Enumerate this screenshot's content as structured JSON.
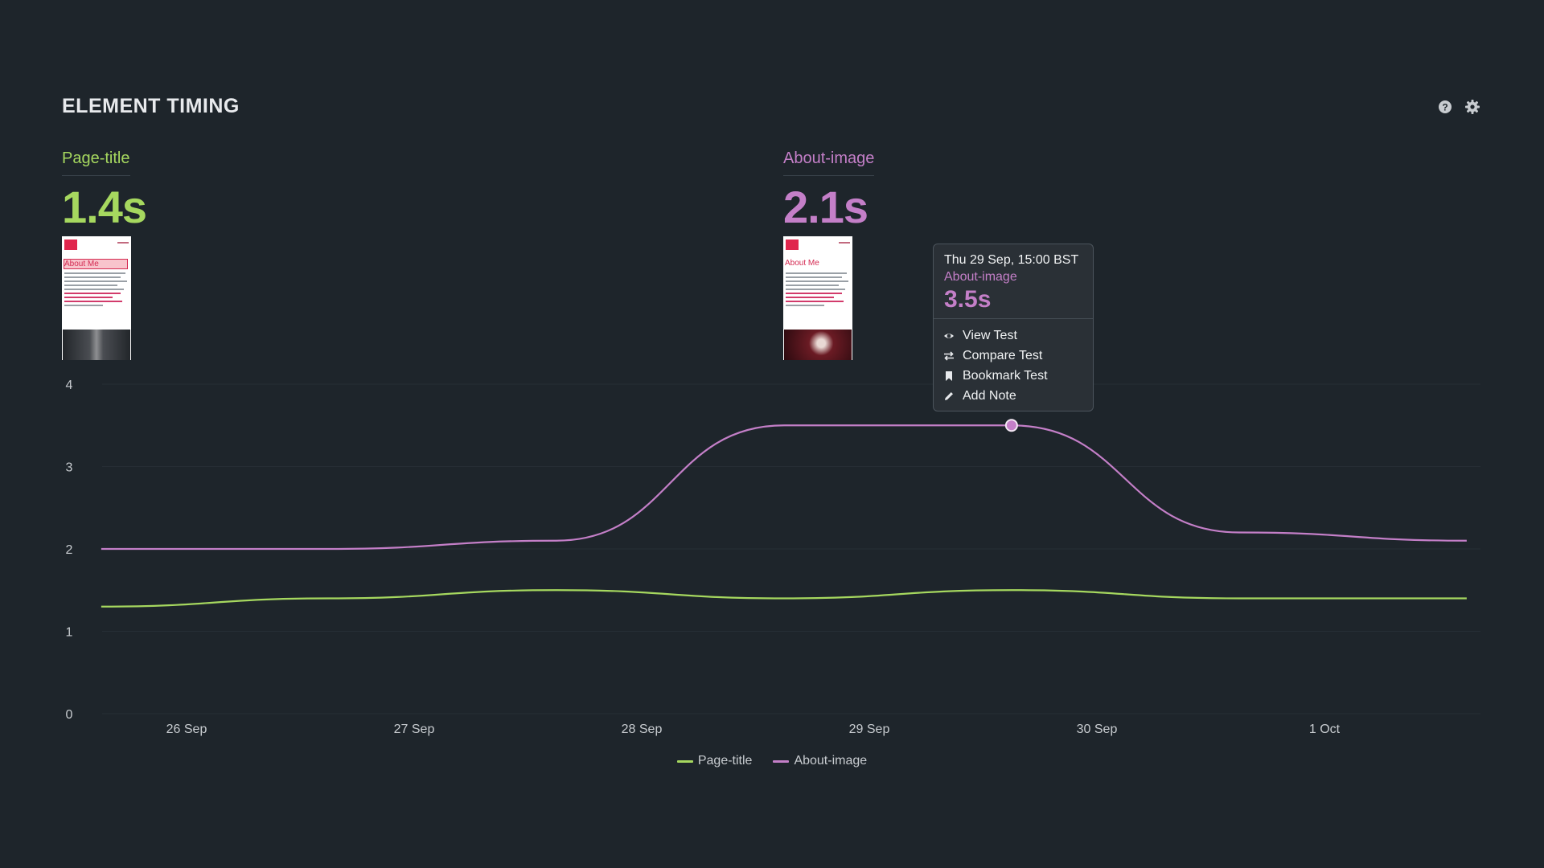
{
  "title": "ELEMENT TIMING",
  "icons": [
    "help-icon",
    "gear-icon"
  ],
  "colors": {
    "page_title": "#a6d85f",
    "about_image": "#c47fc8",
    "background": "#1e252b"
  },
  "metrics": [
    {
      "label": "Page-title",
      "value": "1.4s"
    },
    {
      "label": "About-image",
      "value": "2.1s"
    }
  ],
  "thumbnails": [
    {
      "heading": "About Me"
    },
    {
      "heading": "About Me"
    }
  ],
  "tooltip": {
    "date": "Thu 29 Sep, 15:00 BST",
    "series": "About-image",
    "value": "3.5s",
    "menu": [
      "View Test",
      "Compare Test",
      "Bookmark Test",
      "Add Note"
    ]
  },
  "legend": [
    "Page-title",
    "About-image"
  ],
  "chart_data": {
    "type": "line",
    "ylim": [
      0,
      4
    ],
    "yticks": [
      0,
      1,
      2,
      3,
      4
    ],
    "xlabels": [
      "26 Sep",
      "27 Sep",
      "28 Sep",
      "29 Sep",
      "30 Sep",
      "1 Oct"
    ],
    "xlim": [
      "25 Sep 15:00",
      "1 Oct 15:00"
    ],
    "grid": true,
    "legend_position": "bottom",
    "series": [
      {
        "name": "Page-title",
        "color": "#a6d85f",
        "points": [
          [
            "25 Sep 15:00",
            1.3
          ],
          [
            "26 Sep 15:00",
            1.4
          ],
          [
            "27 Sep 15:00",
            1.5
          ],
          [
            "28 Sep 15:00",
            1.4
          ],
          [
            "29 Sep 15:00",
            1.5
          ],
          [
            "30 Sep 15:00",
            1.4
          ],
          [
            "1 Oct 15:00",
            1.4
          ]
        ]
      },
      {
        "name": "About-image",
        "color": "#c47fc8",
        "points": [
          [
            "25 Sep 15:00",
            2.0
          ],
          [
            "26 Sep 15:00",
            2.0
          ],
          [
            "27 Sep 15:00",
            2.1
          ],
          [
            "28 Sep 15:00",
            3.5
          ],
          [
            "29 Sep 15:00",
            3.5
          ],
          [
            "30 Sep 15:00",
            2.2
          ],
          [
            "1 Oct 15:00",
            2.1
          ]
        ]
      }
    ],
    "highlight": {
      "series": "About-image",
      "x": "29 Sep 15:00",
      "y": 3.5
    }
  }
}
